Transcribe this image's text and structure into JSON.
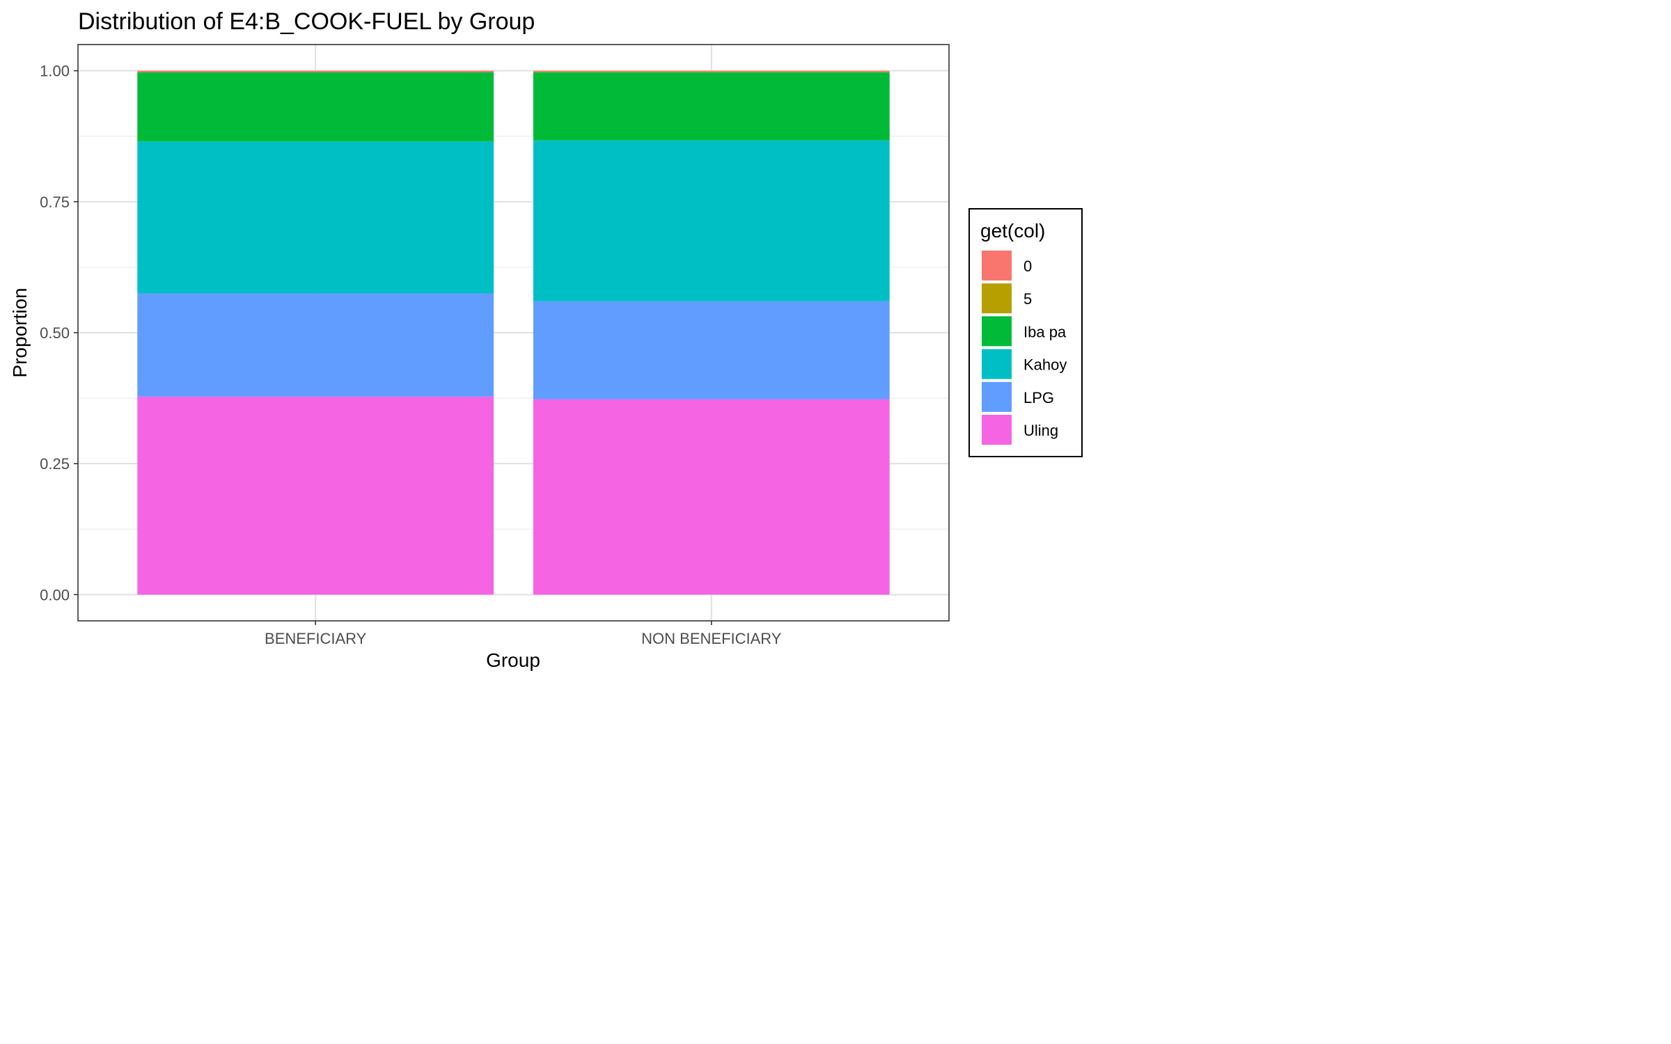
{
  "chart_data": {
    "type": "bar",
    "stacked": true,
    "title": "Distribution of E4:B_COOK-FUEL by Group",
    "xlabel": "Group",
    "ylabel": "Proportion",
    "ylim": [
      -0.05,
      1.05
    ],
    "yticks": [
      0.0,
      0.25,
      0.5,
      0.75,
      1.0
    ],
    "ytick_labels": [
      "0.00",
      "0.25",
      "0.50",
      "0.75",
      "1.00"
    ],
    "grid": true,
    "categories": [
      "BENEFICIARY",
      "NON BENEFICIARY"
    ],
    "legend": {
      "title": "get(col)",
      "position": "right"
    },
    "series": [
      {
        "name": "0",
        "color": "#F8766D",
        "values": [
          0.003,
          0.002
        ]
      },
      {
        "name": "5",
        "color": "#B79F00",
        "values": [
          0.0,
          0.001
        ]
      },
      {
        "name": "Iba pa",
        "color": "#00BA38",
        "values": [
          0.132,
          0.13
        ]
      },
      {
        "name": "Kahoy",
        "color": "#00BFC4",
        "values": [
          0.29,
          0.307
        ]
      },
      {
        "name": "LPG",
        "color": "#619CFF",
        "values": [
          0.197,
          0.187
        ]
      },
      {
        "name": "Uling",
        "color": "#F564E3",
        "values": [
          0.378,
          0.373
        ]
      }
    ]
  }
}
